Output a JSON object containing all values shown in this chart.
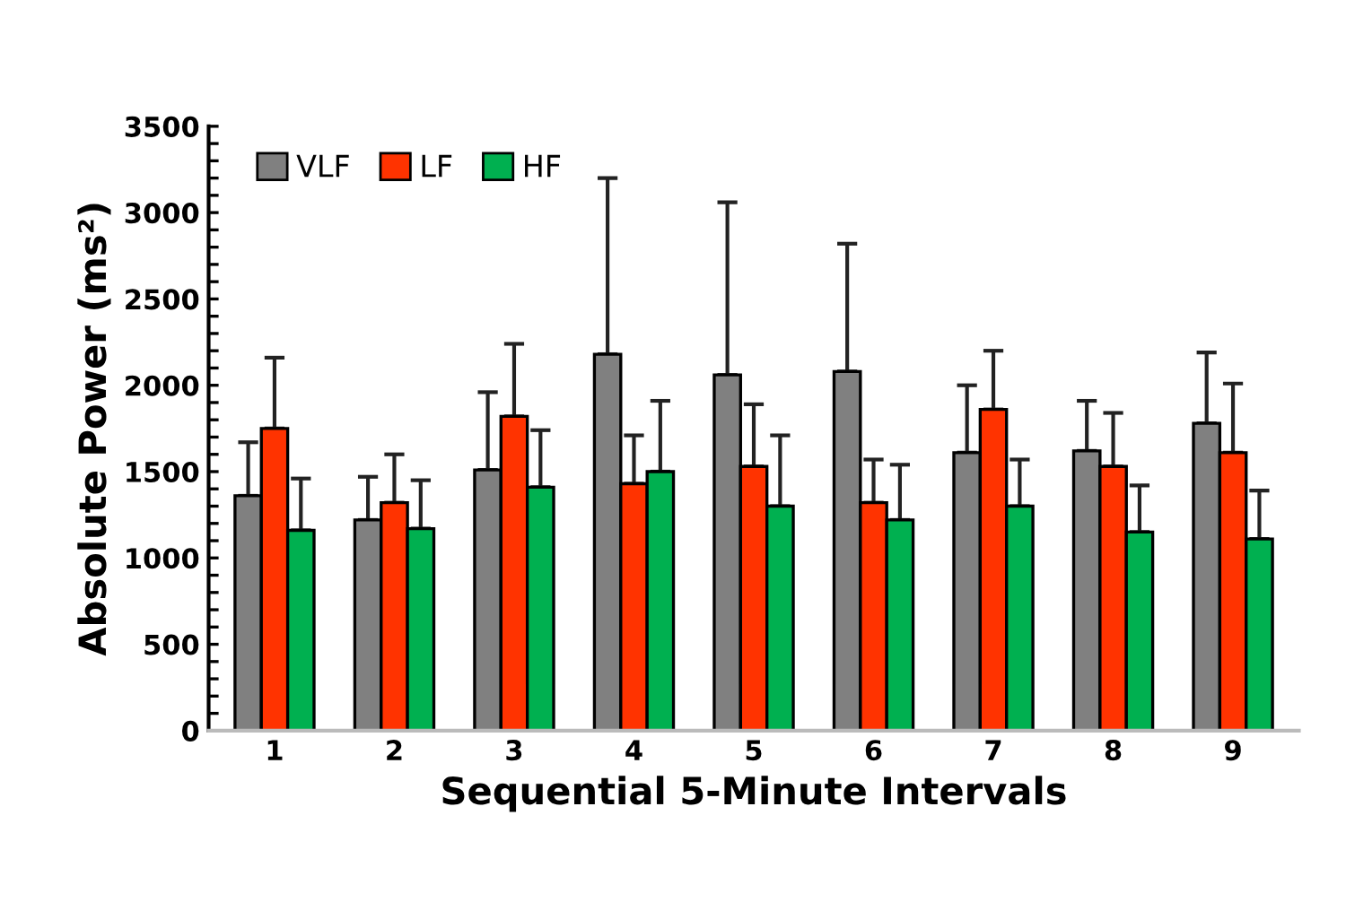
{
  "chart_data": {
    "type": "bar",
    "xlabel": "Sequential 5-Minute Intervals",
    "ylabel": "Absolute Power (ms²)",
    "categories": [
      "1",
      "2",
      "3",
      "4",
      "5",
      "6",
      "7",
      "8",
      "9"
    ],
    "series": [
      {
        "name": "VLF",
        "color": "#808080",
        "values": [
          1360,
          1220,
          1510,
          2180,
          2060,
          2080,
          1610,
          1620,
          1780
        ],
        "errors": [
          [
            1360,
            1670
          ],
          [
            1220,
            1470
          ],
          [
            1510,
            1960
          ],
          [
            2180,
            3200
          ],
          [
            2060,
            3060
          ],
          [
            2080,
            2820
          ],
          [
            1610,
            2000
          ],
          [
            1620,
            1910
          ],
          [
            1780,
            2190
          ]
        ]
      },
      {
        "name": "LF",
        "color": "#ff3300",
        "values": [
          1750,
          1320,
          1820,
          1430,
          1530,
          1320,
          1860,
          1530,
          1610
        ],
        "errors": [
          [
            1750,
            2160
          ],
          [
            1320,
            1600
          ],
          [
            1820,
            2240
          ],
          [
            1430,
            1710
          ],
          [
            1530,
            1890
          ],
          [
            1320,
            1570
          ],
          [
            1860,
            2200
          ],
          [
            1530,
            1840
          ],
          [
            1610,
            2010
          ]
        ]
      },
      {
        "name": "HF",
        "color": "#00b050",
        "values": [
          1160,
          1170,
          1410,
          1500,
          1300,
          1220,
          1300,
          1150,
          1110
        ],
        "errors": [
          [
            1160,
            1460
          ],
          [
            1170,
            1450
          ],
          [
            1410,
            1740
          ],
          [
            1500,
            1910
          ],
          [
            1300,
            1710
          ],
          [
            1220,
            1540
          ],
          [
            1300,
            1570
          ],
          [
            1150,
            1420
          ],
          [
            1110,
            1390
          ]
        ]
      }
    ],
    "ylim": [
      0,
      3500
    ],
    "yticks": [
      0,
      {
        "value": 100,
        "label": null
      },
      {
        "value": 200,
        "label": null
      },
      {
        "value": 300,
        "label": null
      },
      {
        "value": 400,
        "label": null
      },
      500,
      {
        "value": 600,
        "label": null
      },
      {
        "value": 700,
        "label": null
      },
      {
        "value": 800,
        "label": null
      },
      {
        "value": 900,
        "label": null
      },
      1000,
      {
        "value": 1100,
        "label": null
      },
      {
        "value": 1200,
        "label": null
      },
      {
        "value": 1300,
        "label": null
      },
      {
        "value": 1400,
        "label": null
      },
      1500,
      {
        "value": 1600,
        "label": null
      },
      {
        "value": 1700,
        "label": null
      },
      {
        "value": 1800,
        "label": null
      },
      {
        "value": 1900,
        "label": null
      },
      2000,
      {
        "value": 2100,
        "label": null
      },
      {
        "value": 2200,
        "label": null
      },
      {
        "value": 2300,
        "label": null
      },
      {
        "value": 2400,
        "label": null
      },
      2500,
      {
        "value": 2600,
        "label": null
      },
      {
        "value": 2700,
        "label": null
      },
      {
        "value": 2800,
        "label": null
      },
      {
        "value": 2900,
        "label": null
      },
      3000,
      {
        "value": 3100,
        "label": null
      },
      {
        "value": 3200,
        "label": null
      },
      {
        "value": 3300,
        "label": null
      },
      {
        "value": 3400,
        "label": null
      },
      3500
    ],
    "grid": false,
    "legend": "top left"
  }
}
